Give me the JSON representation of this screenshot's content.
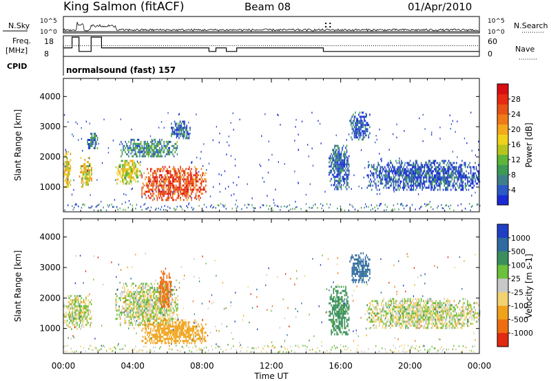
{
  "header": {
    "station": "King Salmon (fitACF)",
    "beam": "Beam 08",
    "date": "01/Apr/2010"
  },
  "status_panel": {
    "nsky_label": "N.Sky",
    "nsearch_label": "N.Search",
    "freq_label_1": "Freq.",
    "freq_label_2": "[MHz]",
    "nave_label": "Nave",
    "cpid_label": "CPID",
    "cpid_value": "normalsound (fast) 157",
    "noise_ticks": [
      "10^5",
      "10^0"
    ],
    "noise_right_ticks": [
      "10^5",
      "10^0"
    ],
    "freq_ticks": [
      "18",
      "8"
    ],
    "nave_ticks": [
      "60",
      "0"
    ]
  },
  "chart_data": [
    {
      "type": "heatmap",
      "name": "power",
      "ylabel": "Slant Range [km]",
      "yticks": [
        1000,
        2000,
        3000,
        4000
      ],
      "ylim": [
        180,
        4600
      ],
      "xlim": [
        0,
        24
      ],
      "colorbar": {
        "label": "Power [dB]",
        "ticks": [
          "4",
          "8",
          "12",
          "16",
          "20",
          "24",
          "28"
        ],
        "colors": [
          "#1a2bd6",
          "#2c59c4",
          "#3f7f8a",
          "#3d9a55",
          "#5db53a",
          "#b8c41e",
          "#f0d21a",
          "#f5a81c",
          "#f07a18",
          "#e85216",
          "#e62a14",
          "#d80f12"
        ]
      },
      "regions": [
        {
          "t": [
            0.0,
            0.4
          ],
          "r": [
            1000,
            2200
          ],
          "level": 0.55
        },
        {
          "t": [
            0.9,
            1.6
          ],
          "r": [
            1000,
            2000
          ],
          "level": 0.55
        },
        {
          "t": [
            1.3,
            2.0
          ],
          "r": [
            2300,
            2800
          ],
          "level": 0.2
        },
        {
          "t": [
            3.0,
            4.5
          ],
          "r": [
            1100,
            1900
          ],
          "level": 0.5
        },
        {
          "t": [
            3.3,
            6.6
          ],
          "r": [
            2000,
            2600
          ],
          "level": 0.25
        },
        {
          "t": [
            4.5,
            8.2
          ],
          "r": [
            600,
            1700
          ],
          "level": 0.8
        },
        {
          "t": [
            6.2,
            7.3
          ],
          "r": [
            2600,
            3200
          ],
          "level": 0.15
        },
        {
          "t": [
            15.3,
            16.5
          ],
          "r": [
            900,
            2400
          ],
          "level": 0.15
        },
        {
          "t": [
            16.5,
            17.7
          ],
          "r": [
            2600,
            3500
          ],
          "level": 0.15
        },
        {
          "t": [
            17.5,
            24.0
          ],
          "r": [
            900,
            1900
          ],
          "level": 0.12
        }
      ]
    },
    {
      "type": "heatmap",
      "name": "velocity",
      "ylabel": "Slant Range [km]",
      "yticks": [
        1000,
        2000,
        3000,
        4000
      ],
      "ylim": [
        180,
        4600
      ],
      "xlim": [
        0,
        24
      ],
      "colorbar": {
        "label": "Velocity [m s-1]",
        "ticks": [
          "1000",
          "500",
          "100",
          "25",
          "-25",
          "-100",
          "-500",
          "-1000"
        ],
        "colors": [
          "#1f3fc4",
          "#2f6aa0",
          "#3a8f5c",
          "#6cc03a",
          "#c8c8c8",
          "#f2d270",
          "#f0a21a",
          "#ef6d12",
          "#e02a12"
        ]
      },
      "regions": [
        {
          "t": [
            0.0,
            1.6
          ],
          "r": [
            1000,
            2100
          ],
          "vel": 0
        },
        {
          "t": [
            3.0,
            6.6
          ],
          "r": [
            1100,
            2500
          ],
          "vel": 0
        },
        {
          "t": [
            4.5,
            8.2
          ],
          "r": [
            500,
            1300
          ],
          "vel": -300
        },
        {
          "t": [
            5.5,
            6.2
          ],
          "r": [
            1700,
            2900
          ],
          "vel": -800
        },
        {
          "t": [
            15.3,
            16.5
          ],
          "r": [
            800,
            2400
          ],
          "vel": 200
        },
        {
          "t": [
            16.5,
            17.7
          ],
          "r": [
            2500,
            3500
          ],
          "vel": 600
        },
        {
          "t": [
            17.5,
            24.0
          ],
          "r": [
            1000,
            2000
          ],
          "vel": 0
        }
      ]
    }
  ],
  "xaxis": {
    "label": "Time UT",
    "ticks": [
      "00:00",
      "04:00",
      "08:00",
      "12:00",
      "16:00",
      "20:00",
      "00:00"
    ]
  },
  "frequency_trace": [
    {
      "t": 0.0,
      "f": 12
    },
    {
      "t": 0.5,
      "f": 12
    },
    {
      "t": 0.5,
      "f": 18
    },
    {
      "t": 0.9,
      "f": 18
    },
    {
      "t": 0.9,
      "f": 10
    },
    {
      "t": 1.6,
      "f": 10
    },
    {
      "t": 1.6,
      "f": 18
    },
    {
      "t": 2.2,
      "f": 18
    },
    {
      "t": 2.2,
      "f": 12
    },
    {
      "t": 8.4,
      "f": 12
    },
    {
      "t": 8.4,
      "f": 10
    },
    {
      "t": 8.8,
      "f": 10
    },
    {
      "t": 8.8,
      "f": 12
    },
    {
      "t": 9.4,
      "f": 12
    },
    {
      "t": 9.4,
      "f": 10
    },
    {
      "t": 10.0,
      "f": 10
    },
    {
      "t": 10.0,
      "f": 12
    },
    {
      "t": 15.0,
      "f": 12
    },
    {
      "t": 15.0,
      "f": 10
    },
    {
      "t": 24.0,
      "f": 10
    }
  ]
}
